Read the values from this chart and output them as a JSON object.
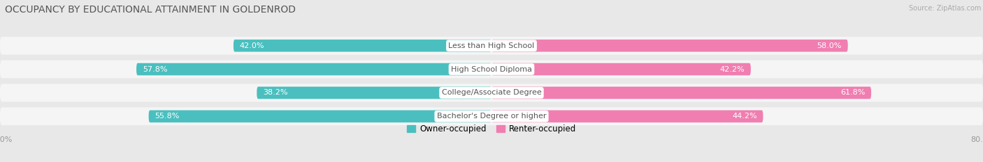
{
  "title": "OCCUPANCY BY EDUCATIONAL ATTAINMENT IN GOLDENROD",
  "source": "Source: ZipAtlas.com",
  "categories": [
    "Less than High School",
    "High School Diploma",
    "College/Associate Degree",
    "Bachelor's Degree or higher"
  ],
  "owner_pct": [
    42.0,
    57.8,
    38.2,
    55.8
  ],
  "renter_pct": [
    58.0,
    42.2,
    61.8,
    44.2
  ],
  "owner_color": "#4BBFBF",
  "renter_color": "#F07EB0",
  "xlim_left": -80.0,
  "xlim_right": 80.0,
  "background_color": "#e8e8e8",
  "bar_bg_color": "#f5f5f5",
  "title_fontsize": 10,
  "label_fontsize": 8,
  "cat_fontsize": 8,
  "legend_fontsize": 8.5,
  "tick_label_color": "#999999",
  "pct_color_inside": "#ffffff",
  "pct_color_outside": "#999999",
  "cat_label_color": "#555555"
}
